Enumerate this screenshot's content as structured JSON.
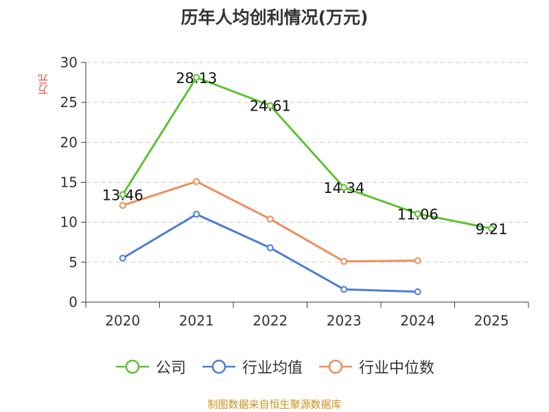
{
  "chart_data": {
    "type": "line",
    "title": "历年人均创利情况(万元)",
    "xlabel": "",
    "ylabel": "万元",
    "categories": [
      "2020",
      "2021",
      "2022",
      "2023",
      "2024",
      "2025"
    ],
    "ylim": [
      0,
      30
    ],
    "yticks": [
      0,
      5,
      10,
      15,
      20,
      25,
      30
    ],
    "grid": true,
    "legend_position": "bottom",
    "series": [
      {
        "name": "公司",
        "color": "#5cc132",
        "values": [
          13.46,
          28.13,
          24.61,
          14.34,
          11.06,
          9.21
        ],
        "labels": [
          "13.46",
          "28.13",
          "24.61",
          "14.34",
          "11.06",
          "9.21"
        ]
      },
      {
        "name": "行业均值",
        "color": "#4a7bd8",
        "values": [
          5.5,
          11.0,
          6.8,
          1.6,
          1.3,
          null
        ],
        "labels": null
      },
      {
        "name": "行业中位数",
        "color": "#f08c5a",
        "values": [
          12.1,
          15.1,
          10.4,
          5.1,
          5.2,
          null
        ],
        "labels": null
      }
    ],
    "source": "制图数据来自恒生聚源数据库"
  }
}
